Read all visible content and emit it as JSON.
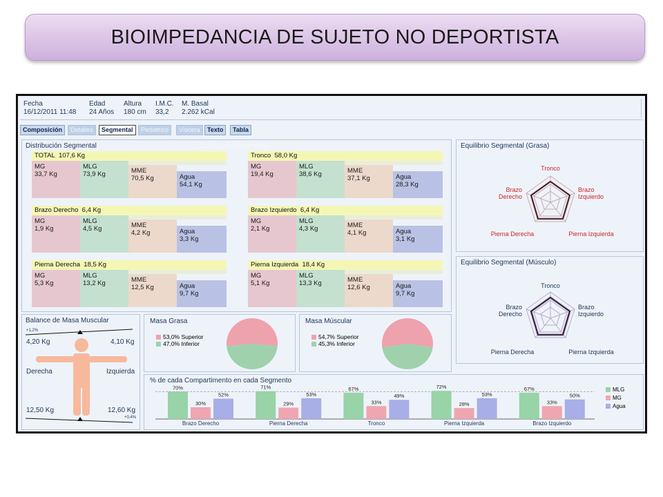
{
  "slide_title": "BIOIMPEDANCIA DE SUJETO NO DEPORTISTA",
  "header": {
    "fields": [
      {
        "label": "Fecha",
        "value": "16/12/2011 11:48"
      },
      {
        "label": "Edad",
        "value": "24 Años"
      },
      {
        "label": "Altura",
        "value": "180 cm"
      },
      {
        "label": "I.M.C.",
        "value": "33,2"
      },
      {
        "label": "M. Basal",
        "value": "2.262 kCal"
      }
    ]
  },
  "tabs": [
    "Composición",
    "Detalles",
    "Segmental",
    "Pediátrico",
    "Víscera",
    "Texto",
    "Tabla"
  ],
  "dist_panel": {
    "title": "Distribución Segmental",
    "ghost_title": "Distribución Segmental",
    "segments": [
      {
        "name": "TOTAL",
        "weight": "107,6 Kg",
        "mg": "33,7 Kg",
        "mlg": "73,9 Kg",
        "mme": "70,5 Kg",
        "agua": "54,1 Kg"
      },
      {
        "name": "Tronco",
        "weight": "58,0 Kg",
        "mg": "19,4 Kg",
        "mlg": "38,6 Kg",
        "mme": "37,1 Kg",
        "agua": "28,3 Kg"
      },
      {
        "name": "Brazo Derecho",
        "weight": "6,4 Kg",
        "mg": "1,9 Kg",
        "mlg": "4,5 Kg",
        "mme": "4,2 Kg",
        "agua": "3,3 Kg"
      },
      {
        "name": "Brazo Izquierdo",
        "weight": "6,4 Kg",
        "mg": "2,1 Kg",
        "mlg": "4,3 Kg",
        "mme": "4,1 Kg",
        "agua": "3,1 Kg"
      },
      {
        "name": "Pierna Derecha",
        "weight": "18,5 Kg",
        "mg": "5,3 Kg",
        "mlg": "13,2 Kg",
        "mme": "12,5 Kg",
        "agua": "9,7 Kg"
      },
      {
        "name": "Pierna Izquierda",
        "weight": "18,4 Kg",
        "mg": "5,1 Kg",
        "mlg": "13,3 Kg",
        "mme": "12,6 Kg",
        "agua": "9,7 Kg"
      }
    ],
    "labels": {
      "mg": "MG",
      "mlg": "MLG",
      "mme": "MME",
      "agua": "Agua"
    }
  },
  "radar_fat": {
    "title": "Equilibrio Segmental (Grasa)",
    "labels": [
      "Tronco",
      "Brazo Izquierdo",
      "Pierna Izquierda",
      "Pierna Derecha",
      "Brazo Derecho"
    ]
  },
  "radar_muscle": {
    "title": "Equilibrio Segmental (Músculo)",
    "labels": [
      "Tronco",
      "Brazo Izquierdo",
      "Pierna Izquierda",
      "Pierna Derecha",
      "Brazo Derecho"
    ]
  },
  "balance": {
    "title": "Balance de Masa Muscular",
    "top_pct": "+1,2%",
    "bottom_pct": "+0,4%",
    "arm_left": "4,20 Kg",
    "arm_right": "4,10 Kg",
    "side_left": "Derecha",
    "side_right": "Izquierda",
    "leg_left": "12,50 Kg",
    "leg_right": "12,60 Kg"
  },
  "masa_grasa": {
    "title": "Masa Grasa",
    "legend": [
      "53,0% Superior",
      "47,0% Inferior"
    ],
    "values": [
      53.0,
      47.0
    ]
  },
  "masa_muscular": {
    "title": "Masa Múscular",
    "legend": [
      "54,7% Superior",
      "45,3% Inferior"
    ],
    "values": [
      54.7,
      45.3
    ]
  },
  "chart_data": {
    "type": "bar",
    "title": "% de cada Compartimento en cada Segmento",
    "categories": [
      "Brazo Derecho",
      "Pierna Derecha",
      "Tronco",
      "Pierna Izquierda",
      "Brazo Izquierdo"
    ],
    "series": [
      {
        "name": "MLG",
        "values": [
          70,
          71,
          67,
          72,
          67
        ],
        "labels": [
          "70%",
          "71%",
          "67%",
          "72%",
          "67%"
        ]
      },
      {
        "name": "MG",
        "values": [
          30,
          29,
          33,
          28,
          33
        ],
        "labels": [
          "30%",
          "29%",
          "33%",
          "28%",
          "33%"
        ]
      },
      {
        "name": "Agua",
        "values": [
          52,
          53,
          49,
          53,
          50
        ],
        "labels": [
          "52%",
          "53%",
          "49%",
          "53%",
          "50%"
        ]
      }
    ],
    "ylim": [
      0,
      100
    ]
  },
  "colors": {
    "mg": "#e7c7cf",
    "mlg": "#c4e0cf",
    "mme": "#ecd9cc",
    "agua": "#b9c2e4",
    "pie_pink": "#eea2ad",
    "pie_green": "#9fd1ac",
    "bar_mlg": "#99d3a8",
    "bar_mg": "#efa6b1",
    "bar_agua": "#a8aee8"
  }
}
